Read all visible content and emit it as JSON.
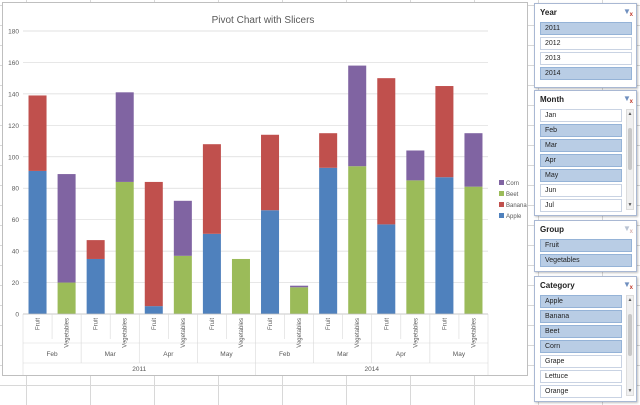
{
  "chart_data": {
    "type": "bar",
    "stacked": true,
    "title": "Pivot Chart with Slicers",
    "ylim": [
      0,
      180
    ],
    "yticks": [
      0,
      20,
      40,
      60,
      80,
      100,
      120,
      140,
      160,
      180
    ],
    "grid": true,
    "legend_placement": "right",
    "categories": [
      {
        "year": "2011",
        "month": "Feb",
        "group": "Fruit"
      },
      {
        "year": "2011",
        "month": "Feb",
        "group": "Vegetables"
      },
      {
        "year": "2011",
        "month": "Mar",
        "group": "Fruit"
      },
      {
        "year": "2011",
        "month": "Mar",
        "group": "Vegetables"
      },
      {
        "year": "2011",
        "month": "Apr",
        "group": "Fruit"
      },
      {
        "year": "2011",
        "month": "Apr",
        "group": "Vegetables"
      },
      {
        "year": "2011",
        "month": "May",
        "group": "Fruit"
      },
      {
        "year": "2011",
        "month": "May",
        "group": "Vegetables"
      },
      {
        "year": "2014",
        "month": "Feb",
        "group": "Fruit"
      },
      {
        "year": "2014",
        "month": "Feb",
        "group": "Vegetables"
      },
      {
        "year": "2014",
        "month": "Mar",
        "group": "Fruit"
      },
      {
        "year": "2014",
        "month": "Mar",
        "group": "Vegetables"
      },
      {
        "year": "2014",
        "month": "Apr",
        "group": "Fruit"
      },
      {
        "year": "2014",
        "month": "Apr",
        "group": "Vegetables"
      },
      {
        "year": "2014",
        "month": "May",
        "group": "Fruit"
      },
      {
        "year": "2014",
        "month": "May",
        "group": "Vegetables"
      }
    ],
    "series": [
      {
        "name": "Apple",
        "color": "#4f81bd",
        "values": [
          91,
          0,
          35,
          0,
          5,
          0,
          51,
          0,
          66,
          0,
          93,
          0,
          57,
          0,
          87,
          0
        ]
      },
      {
        "name": "Banana",
        "color": "#c0504d",
        "values": [
          48,
          0,
          12,
          0,
          79,
          0,
          57,
          0,
          48,
          0,
          22,
          0,
          93,
          0,
          58,
          0
        ]
      },
      {
        "name": "Beet",
        "color": "#9bbb59",
        "values": [
          0,
          20,
          0,
          84,
          0,
          37,
          0,
          35,
          0,
          17,
          0,
          94,
          0,
          85,
          0,
          81
        ]
      },
      {
        "name": "Corn",
        "color": "#8064a2",
        "values": [
          0,
          69,
          0,
          57,
          0,
          35,
          0,
          0,
          0,
          1,
          0,
          64,
          0,
          19,
          0,
          34
        ]
      }
    ]
  },
  "slicers": [
    {
      "title": "Year",
      "filtered": true,
      "items": [
        {
          "label": "2011",
          "selected": true
        },
        {
          "label": "2012",
          "selected": false
        },
        {
          "label": "2013",
          "selected": false
        },
        {
          "label": "2014",
          "selected": true
        }
      ]
    },
    {
      "title": "Month",
      "filtered": true,
      "items": [
        {
          "label": "Jan",
          "selected": false
        },
        {
          "label": "Feb",
          "selected": true
        },
        {
          "label": "Mar",
          "selected": true
        },
        {
          "label": "Apr",
          "selected": true
        },
        {
          "label": "May",
          "selected": true
        },
        {
          "label": "Jun",
          "selected": false
        },
        {
          "label": "Jul",
          "selected": false
        }
      ]
    },
    {
      "title": "Group",
      "filtered": false,
      "items": [
        {
          "label": "Fruit",
          "selected": true
        },
        {
          "label": "Vegetables",
          "selected": true
        }
      ]
    },
    {
      "title": "Category",
      "filtered": true,
      "items": [
        {
          "label": "Apple",
          "selected": true
        },
        {
          "label": "Banana",
          "selected": true
        },
        {
          "label": "Beet",
          "selected": true
        },
        {
          "label": "Corn",
          "selected": true
        },
        {
          "label": "Grape",
          "selected": false
        },
        {
          "label": "Lettuce",
          "selected": false
        },
        {
          "label": "Orange",
          "selected": false
        }
      ]
    }
  ]
}
